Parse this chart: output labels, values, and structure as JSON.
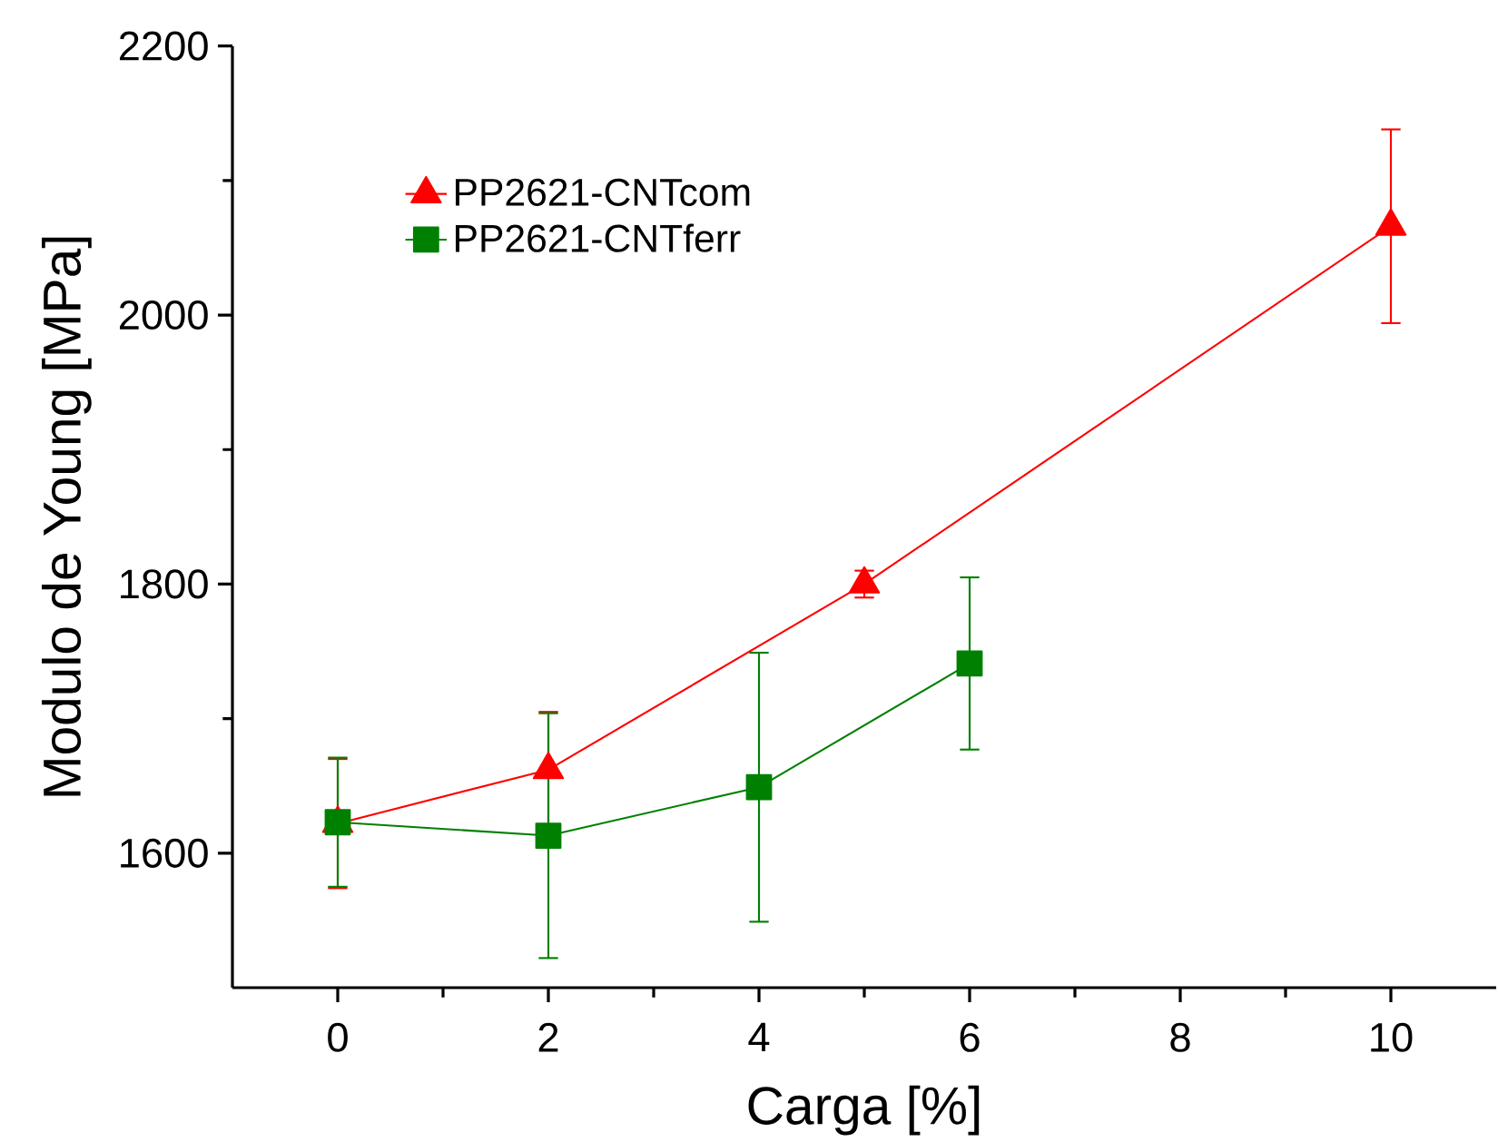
{
  "chart_data": {
    "type": "line",
    "xlabel": "Carga [%]",
    "ylabel": "Modulo de Young [MPa]",
    "xlim": [
      -1,
      11
    ],
    "ylim": [
      1500,
      2200
    ],
    "xticks": [
      0,
      2,
      4,
      6,
      8,
      10
    ],
    "yticks": [
      1600,
      1800,
      2000,
      2200
    ],
    "legend": "top left",
    "line_style": "solid",
    "series": [
      {
        "name": "PP2621-CNTcom",
        "color": "#ff0000",
        "marker": "triangle",
        "x": [
          0,
          2,
          5,
          10
        ],
        "values": [
          1622,
          1662,
          1800,
          2066
        ],
        "errors": [
          48,
          43,
          10,
          72
        ]
      },
      {
        "name": "PP2621-CNTferr",
        "color": "#008000",
        "marker": "square",
        "x": [
          0,
          2,
          4,
          6
        ],
        "values": [
          1623,
          1613,
          1649,
          1741
        ],
        "errors": [
          48,
          91,
          100,
          64
        ]
      }
    ]
  }
}
